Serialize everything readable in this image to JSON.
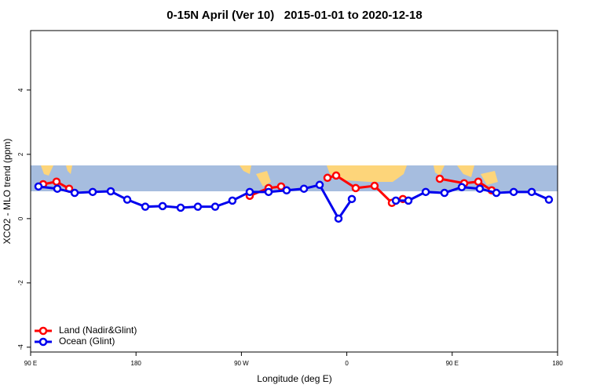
{
  "chart_data": {
    "type": "line",
    "title": "0-15N April (Ver 10)   2015-01-01 to 2020-12-18",
    "xlabel": "Longitude (deg E)",
    "ylabel": "XCO2 - MLO trend (ppm)",
    "xlim": [
      90,
      540
    ],
    "ylim": [
      -4.15,
      5.85
    ],
    "xticks": [
      {
        "value": 90,
        "label": "90 E"
      },
      {
        "value": 180,
        "label": "180"
      },
      {
        "value": 270,
        "label": "90 W"
      },
      {
        "value": 360,
        "label": "0"
      },
      {
        "value": 450,
        "label": "90 E"
      },
      {
        "value": 540,
        "label": "180"
      }
    ],
    "yticks": [
      -4,
      -2,
      0,
      2,
      4
    ],
    "legend": "bottom-left",
    "series": [
      {
        "name": "Land (Nadir&Glint)",
        "color": "#ff0000",
        "x": [
          100.7,
          112.1,
          122.9,
          null,
          277.1,
          293.2,
          303.9,
          null,
          343.5,
          350.9,
          367.6,
          383.7,
          398.5,
          407.9,
          null,
          439.4,
          460.2,
          472.3,
          483.7
        ],
        "values": [
          1.07,
          1.15,
          0.93,
          null,
          0.71,
          0.95,
          1.0,
          null,
          1.27,
          1.34,
          0.95,
          1.02,
          0.49,
          0.61,
          null,
          1.24,
          1.1,
          1.15,
          0.88
        ]
      },
      {
        "name": "Ocean (Glint)",
        "color": "#0000ee",
        "x": [
          96.7,
          112.8,
          127.6,
          143,
          158.4,
          172.5,
          187.9,
          202.7,
          218.1,
          232.8,
          247.6,
          262.3,
          277.1,
          293.2,
          308.6,
          323.4,
          336.8,
          352.9,
          364.3,
          null,
          401.9,
          412.6,
          427.4,
          443.4,
          458.2,
          473.6,
          487.7,
          502.5,
          517.9,
          532.6
        ],
        "values": [
          1.0,
          0.93,
          0.8,
          0.83,
          0.85,
          0.59,
          0.37,
          0.39,
          0.34,
          0.37,
          0.37,
          0.56,
          0.83,
          0.83,
          0.88,
          0.93,
          1.05,
          0.0,
          0.61,
          null,
          0.56,
          0.56,
          0.83,
          0.8,
          0.98,
          0.93,
          0.8,
          0.83,
          0.83,
          0.59
        ]
      }
    ]
  }
}
